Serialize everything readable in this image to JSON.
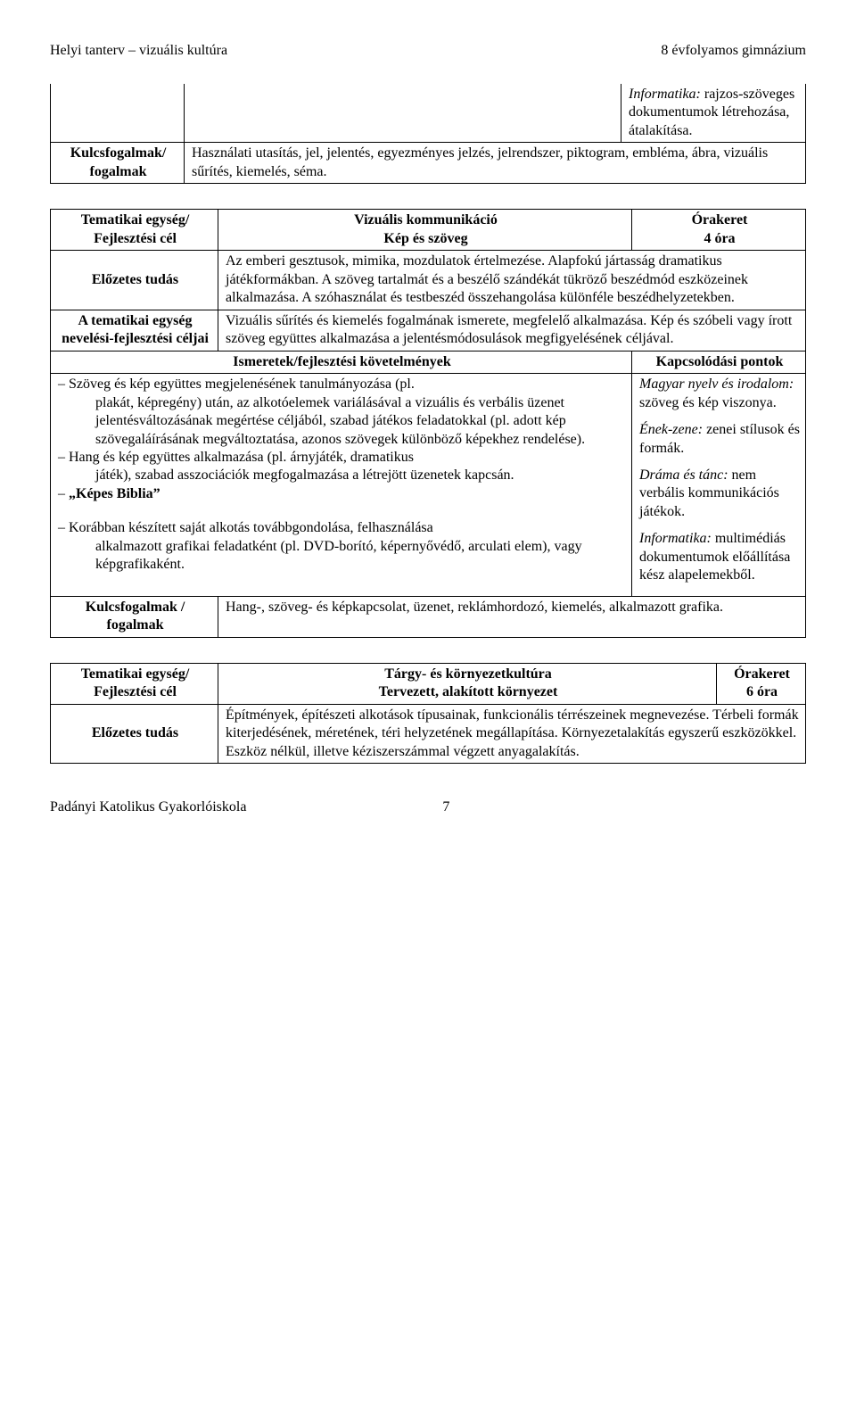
{
  "header": {
    "left": "Helyi tanterv – vizuális kultúra",
    "right": "8 évfolyamos gimnázium"
  },
  "table1": {
    "topRight": "Informatika: rajzos-szöveges dokumentumok létrehozása, átalakítása.",
    "topRightItalic": "Informatika:",
    "topRightRest": " rajzos-szöveges dokumentumok létrehozása, átalakítása.",
    "leftLabel": "Kulcsfogalmak/ fogalmak",
    "rightText": "Használati utasítás, jel, jelentés, egyezményes jelzés, jelrendszer, piktogram, embléma, ábra, vizuális sűrítés, kiemelés, séma."
  },
  "table2": {
    "r1c1": "Tematikai egység/ Fejlesztési cél",
    "r1c2a": "Vizuális kommunikáció",
    "r1c2b": "Kép és szöveg",
    "r1c3a": "Órakeret",
    "r1c3b": "4 óra",
    "r2c1": "Előzetes tudás",
    "r2c2": "Az emberi gesztusok, mimika, mozdulatok értelmezése. Alapfokú jártasság dramatikus játékformákban. A szöveg tartalmát és a beszélő szándékát tükröző beszédmód eszközeinek alkalmazása. A szóhasználat és testbeszéd összehangolása különféle beszédhelyzetekben.",
    "r3c1": "A tematikai egység nevelési-fejlesztési céljai",
    "r3c2": "Vizuális sűrítés és kiemelés fogalmának ismerete, megfelelő alkalmazása. Kép és szóbeli vagy írott szöveg együttes alkalmazása a jelentésmódosulások megfigyelésének céljával.",
    "r4c1": "Ismeretek/fejlesztési követelmények",
    "r4c2": "Kapcsolódási pontok",
    "bullets": [
      {
        "lead": "Szöveg és kép együttes megjelenésének tanulmányozása (pl.",
        "rest": "plakát, képregény) után, az alkotóelemek variálásával a vizuális és verbális üzenet jelentésváltozásának megértése céljából, szabad játékos feladatokkal (pl. adott kép szövegaláírásának megváltoztatása, azonos szövegek különböző képekhez rendelése)."
      },
      {
        "lead": "Hang és kép együttes alkalmazása (pl. árnyjáték, dramatikus",
        "rest": "játék), szabad asszociációk megfogalmazása a létrejött üzenetek kapcsán."
      },
      {
        "lead": "„Képes Biblia”",
        "bold": true
      },
      {
        "spacer": true
      },
      {
        "lead": "Korábban készített saját alkotás továbbgondolása, felhasználása",
        "rest": "alkalmazott grafikai feladatként (pl. DVD-borító, képernyővédő, arculati elem), vagy képgrafikaként."
      }
    ],
    "connect": [
      {
        "label": "Magyar nyelv és irodalom:",
        "rest": " szöveg és kép viszonya."
      },
      {
        "label": "Ének-zene:",
        "rest": " zenei stílusok és formák."
      },
      {
        "label": "Dráma és tánc:",
        "rest": " nem verbális kommunikációs játékok."
      },
      {
        "label": "Informatika:",
        "rest": " multimédiás dokumentumok előállítása kész alapelemekből."
      }
    ],
    "r6c1": "Kulcsfogalmak / fogalmak",
    "r6c2": "Hang-, szöveg- és képkapcsolat, üzenet, reklámhordozó, kiemelés, alkalmazott grafika."
  },
  "table3": {
    "r1c1": "Tematikai egység/ Fejlesztési cél",
    "r1c2a": "Tárgy- és környezetkultúra",
    "r1c2b": "Tervezett, alakított környezet",
    "r1c3a": "Órakeret",
    "r1c3b": "6 óra",
    "r2c1": "Előzetes tudás",
    "r2c2": "Építmények, építészeti alkotások típusainak, funkcionális térrészeinek megnevezése. Térbeli formák kiterjedésének, méretének, téri helyzetének megállapítása. Környezetalakítás egyszerű eszközökkel. Eszköz nélkül, illetve kéziszerszámmal végzett anyagalakítás."
  },
  "footer": {
    "left": "Padányi Katolikus Gyakorlóiskola",
    "page": "7"
  }
}
